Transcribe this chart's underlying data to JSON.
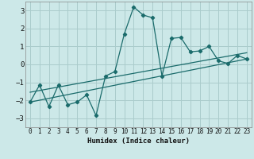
{
  "xlabel": "Humidex (Indice chaleur)",
  "ylabel": "",
  "background_color": "#cce8e8",
  "grid_color": "#aacccc",
  "line_color": "#1a6b6b",
  "xlim": [
    -0.5,
    23.5
  ],
  "ylim": [
    -3.5,
    3.5
  ],
  "yticks": [
    -3,
    -2,
    -1,
    0,
    1,
    2,
    3
  ],
  "xticks": [
    0,
    1,
    2,
    3,
    4,
    5,
    6,
    7,
    8,
    9,
    10,
    11,
    12,
    13,
    14,
    15,
    16,
    17,
    18,
    19,
    20,
    21,
    22,
    23
  ],
  "series1_x": [
    0,
    1,
    2,
    3,
    4,
    5,
    6,
    7,
    8,
    9,
    10,
    11,
    12,
    13,
    14,
    15,
    16,
    17,
    18,
    19,
    20,
    21,
    22,
    23
  ],
  "series1_y": [
    -2.1,
    -1.15,
    -2.35,
    -1.15,
    -2.25,
    -2.1,
    -1.7,
    -2.85,
    -0.65,
    -0.4,
    1.7,
    3.2,
    2.75,
    2.6,
    -0.65,
    1.45,
    1.5,
    0.7,
    0.75,
    1.0,
    0.2,
    0.05,
    0.5,
    0.3
  ],
  "series2_x": [
    0,
    23
  ],
  "series2_y": [
    -2.1,
    0.3
  ],
  "series3_x": [
    0,
    23
  ],
  "series3_y": [
    -1.55,
    0.65
  ],
  "font_family": "monospace"
}
